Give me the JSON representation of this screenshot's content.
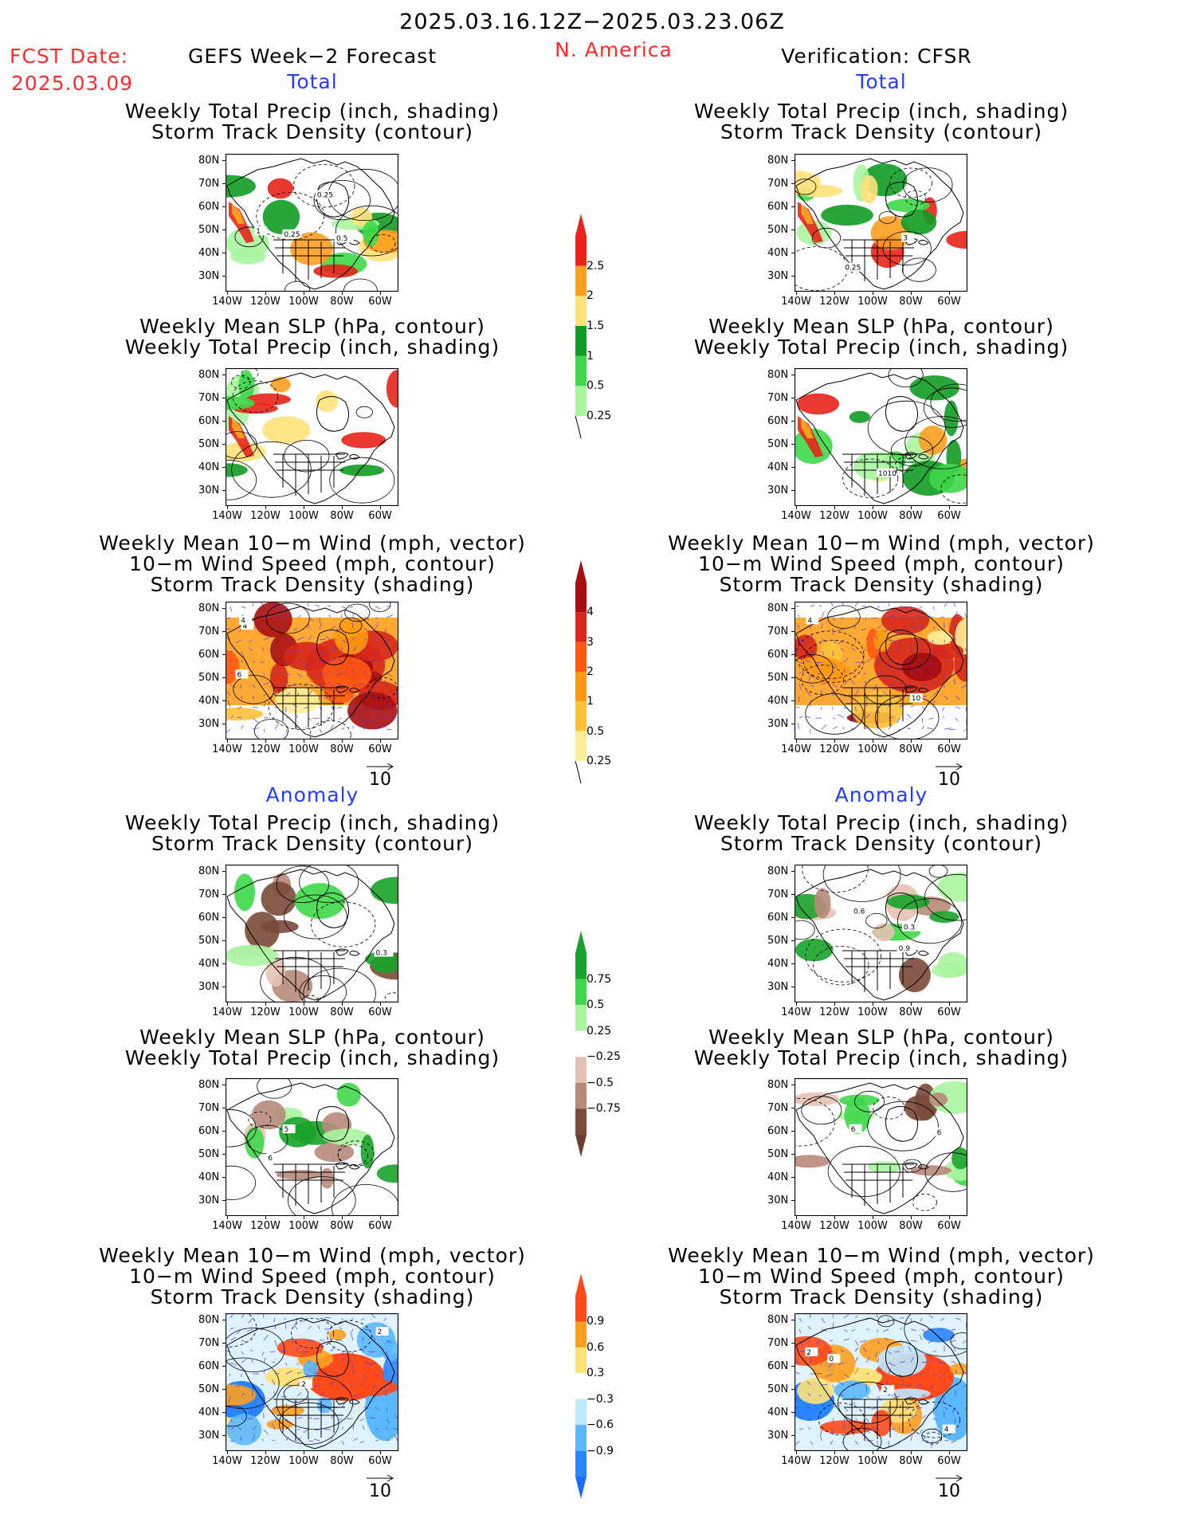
{
  "header": {
    "date_range": "2025.03.16.12Z−2025.03.23.06Z",
    "fcst_label": "FCST Date:",
    "fcst_date": "2025.03.09",
    "left_title": "GEFS Week−2 Forecast",
    "region": "N. America",
    "right_title": "Verification: CFSR"
  },
  "sections": {
    "total": "Total",
    "anomaly": "Anomaly"
  },
  "axes": {
    "lat_labels": [
      "80N",
      "70N",
      "60N",
      "50N",
      "40N",
      "30N"
    ],
    "lon_labels": [
      "140W",
      "120W",
      "100W",
      "80W",
      "60W"
    ]
  },
  "vector_reference": "10",
  "panels": [
    {
      "id": "fc-total-precip",
      "column": "forecast",
      "title": [
        "Weekly Total Precip (inch, shading)",
        "Storm Track Density (contour)"
      ],
      "contour_labels": [
        "0.25",
        "0.5",
        "0.25",
        "1"
      ],
      "variable": "precip"
    },
    {
      "id": "fc-total-slp",
      "column": "forecast",
      "title": [
        "Weekly Mean SLP (hPa, contour)",
        "Weekly Total Precip (inch, shading)"
      ],
      "contour_labels": [],
      "variable": "precip"
    },
    {
      "id": "fc-total-wind",
      "column": "forecast",
      "title": [
        "Weekly Mean 10−m Wind (mph, vector)",
        "10−m Wind Speed (mph, contour)",
        "Storm Track Density (shading)"
      ],
      "contour_labels": [
        "4",
        "4",
        "6"
      ],
      "variable": "storm"
    },
    {
      "id": "vf-total-precip",
      "column": "verification",
      "title": [
        "Weekly Total Precip (inch, shading)",
        "Storm Track Density (contour)"
      ],
      "contour_labels": [
        "0.25",
        "3"
      ],
      "variable": "precip"
    },
    {
      "id": "vf-total-slp",
      "column": "verification",
      "title": [
        "Weekly Mean SLP (hPa, contour)",
        "Weekly Total Precip (inch, shading)"
      ],
      "contour_labels": [
        "1010"
      ],
      "variable": "precip"
    },
    {
      "id": "vf-total-wind",
      "column": "verification",
      "title": [
        "Weekly Mean 10−m Wind (mph, vector)",
        "10−m Wind Speed (mph, contour)",
        "Storm Track Density (shading)"
      ],
      "contour_labels": [
        "10",
        "4"
      ],
      "variable": "storm"
    },
    {
      "id": "fc-anom-precip",
      "column": "forecast",
      "title": [
        "Weekly Total Precip (inch, shading)",
        "Storm Track Density (contour)"
      ],
      "contour_labels": [
        "0.3"
      ],
      "variable": "precip_anom"
    },
    {
      "id": "fc-anom-slp",
      "column": "forecast",
      "title": [
        "Weekly Mean SLP (hPa, contour)",
        "Weekly Total Precip (inch, shading)"
      ],
      "contour_labels": [
        "6",
        "5"
      ],
      "variable": "precip_anom"
    },
    {
      "id": "fc-anom-wind",
      "column": "forecast",
      "title": [
        "Weekly Mean 10−m Wind (mph, vector)",
        "10−m Wind Speed (mph, contour)",
        "Storm Track Density (shading)"
      ],
      "contour_labels": [
        "2",
        "2"
      ],
      "variable": "storm_anom"
    },
    {
      "id": "vf-anom-precip",
      "column": "verification",
      "title": [
        "Weekly Total Precip (inch, shading)",
        "Storm Track Density (contour)"
      ],
      "contour_labels": [
        "0.3",
        "0.9",
        "0.6"
      ],
      "variable": "precip_anom"
    },
    {
      "id": "vf-anom-slp",
      "column": "verification",
      "title": [
        "Weekly Mean SLP (hPa, contour)",
        "Weekly Total Precip (inch, shading)"
      ],
      "contour_labels": [
        "6",
        "6"
      ],
      "variable": "precip_anom"
    },
    {
      "id": "vf-anom-wind",
      "column": "verification",
      "title": [
        "Weekly Mean 10−m Wind (mph, vector)",
        "10−m Wind Speed (mph, contour)",
        "Storm Track Density (shading)"
      ],
      "contour_labels": [
        "0",
        "4",
        "2",
        "2"
      ],
      "variable": "storm_anom"
    }
  ],
  "colorbars": [
    {
      "id": "cb-precip",
      "labels": [
        "2.5",
        "2",
        "1.5",
        "1",
        "0.5",
        "0.25"
      ],
      "colors": [
        "#e8231a",
        "#ff9e1f",
        "#ffe27a",
        "#119c23",
        "#3fd84a",
        "#a8f5a0"
      ],
      "top_color": "#e8231a",
      "bottom_open": true
    },
    {
      "id": "cb-storm",
      "labels": [
        "4",
        "3",
        "2",
        "1",
        "0.5",
        "0.25"
      ],
      "colors": [
        "#a80f12",
        "#d6271a",
        "#ff5a14",
        "#ff9a12",
        "#ffc23a",
        "#ffee98"
      ],
      "top_color": "#a80f12",
      "bottom_open": true
    },
    {
      "id": "cb-precip-anom",
      "labels": [
        "0.75",
        "0.5",
        "0.25",
        "−0.25",
        "−0.5",
        "−0.75"
      ],
      "colors": [
        "#19a32a",
        "#3fd84a",
        "#a8f5a0",
        "#ffffff",
        "#e4c2b4",
        "#b88a7a",
        "#7a4a3a"
      ],
      "top_color": "#19a32a",
      "bottom_color": "#6b3f30"
    },
    {
      "id": "cb-storm-anom",
      "labels": [
        "0.9",
        "0.6",
        "0.3",
        "−0.3",
        "−0.6",
        "−0.9"
      ],
      "colors": [
        "#ff4a1a",
        "#ff9e1f",
        "#ffe27a",
        "#ffffff",
        "#bfe8ff",
        "#5cb8ff",
        "#2a86ff"
      ],
      "top_color": "#ff4a1a",
      "bottom_color": "#1a6cff"
    }
  ],
  "colors": {
    "red_text": "#ff2a2a",
    "blue_text": "#1f3dff"
  }
}
